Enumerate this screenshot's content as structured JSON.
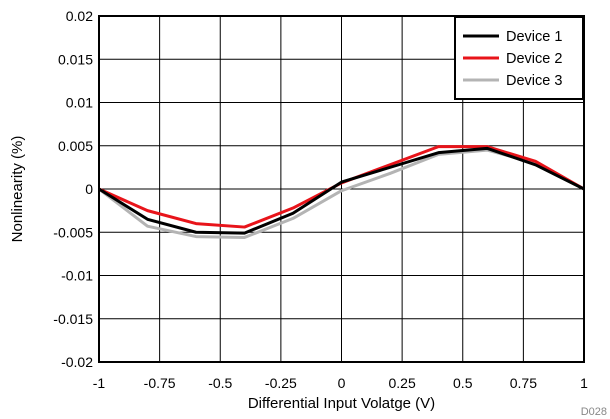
{
  "chart_data": {
    "type": "line",
    "xlabel": "Differential Input Volatge (V)",
    "ylabel": "Nonlinearity (%)",
    "xlim": [
      -1,
      1
    ],
    "ylim": [
      -0.02,
      0.02
    ],
    "x_ticks": [
      -1,
      -0.75,
      -0.5,
      -0.25,
      0,
      0.25,
      0.5,
      0.75,
      1
    ],
    "x_tick_labels": [
      "-1",
      "-0.75",
      "-0.5",
      "-0.25",
      "0",
      "0.25",
      "0.5",
      "0.75",
      "1"
    ],
    "y_ticks": [
      0.02,
      0.015,
      0.01,
      0.005,
      0,
      -0.005,
      -0.01,
      -0.015,
      -0.02
    ],
    "y_tick_labels": [
      "0.02",
      "0.015",
      "0.01",
      "0.005",
      "0",
      "-0.005",
      "-0.01",
      "-0.015",
      "-0.02"
    ],
    "grid": true,
    "legend_position": "top-right",
    "figure_id": "D028",
    "series": [
      {
        "name": "Device 1",
        "color": "#000000",
        "x": [
          -1,
          -0.8,
          -0.6,
          -0.4,
          -0.2,
          0,
          0.2,
          0.4,
          0.6,
          0.8,
          1
        ],
        "values": [
          0,
          -0.0035,
          -0.005,
          -0.0051,
          -0.0028,
          0.0008,
          0.0025,
          0.0042,
          0.0047,
          0.0028,
          0
        ]
      },
      {
        "name": "Device 2",
        "color": "#e8141a",
        "x": [
          -1,
          -0.8,
          -0.6,
          -0.4,
          -0.2,
          0,
          0.2,
          0.4,
          0.6,
          0.8,
          1
        ],
        "values": [
          0,
          -0.0025,
          -0.004,
          -0.0044,
          -0.0022,
          0.0007,
          0.0028,
          0.0049,
          0.0049,
          0.0032,
          0
        ]
      },
      {
        "name": "Device 3",
        "color": "#b4b4b4",
        "x": [
          -1,
          -0.8,
          -0.6,
          -0.4,
          -0.2,
          0,
          0.2,
          0.4,
          0.6,
          0.8,
          1
        ],
        "values": [
          0,
          -0.0043,
          -0.0055,
          -0.0056,
          -0.0034,
          -0.0002,
          0.0018,
          0.004,
          0.0045,
          0.003,
          0
        ]
      }
    ]
  }
}
